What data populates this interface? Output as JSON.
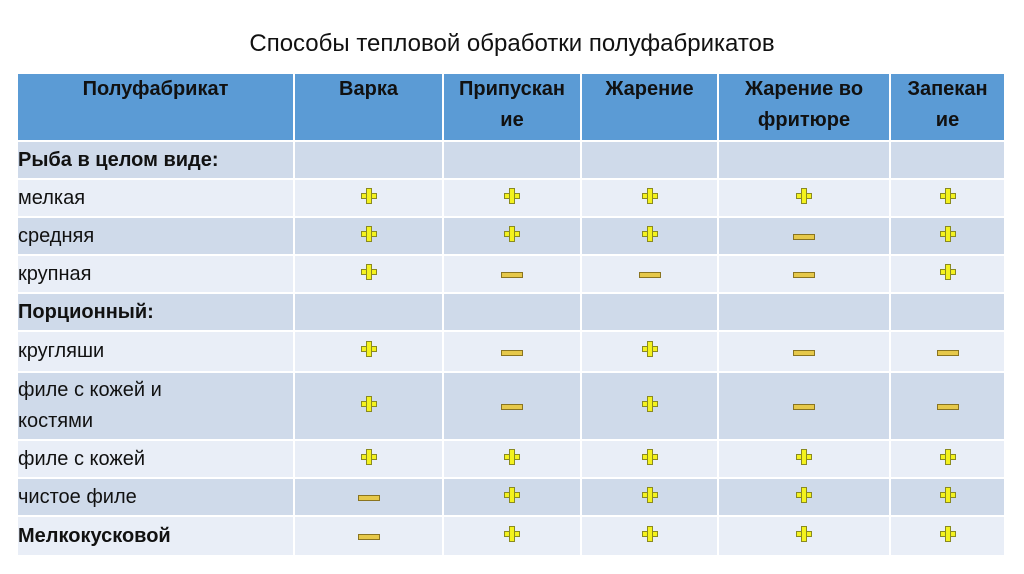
{
  "title": "Способы тепловой обработки полуфабрикатов",
  "table": {
    "headers": [
      "Полуфабрикат",
      "Варка",
      "Припускан ие",
      "Жарение",
      "Жарение во фритюре",
      "Запекан ие"
    ],
    "header_lines": [
      [
        "Полуфабрикат"
      ],
      [
        "Варка"
      ],
      [
        "Припускан",
        "ие"
      ],
      [
        "Жарение"
      ],
      [
        "Жарение во",
        "фритюре"
      ],
      [
        "Запекан",
        "ие"
      ]
    ],
    "rows": [
      {
        "label": "Рыба в целом виде:",
        "label_lines": [
          "Рыба в целом виде:"
        ],
        "bold": true,
        "marks": [
          "",
          "",
          "",
          "",
          ""
        ]
      },
      {
        "label": "мелкая",
        "label_lines": [
          "мелкая"
        ],
        "bold": false,
        "marks": [
          "+",
          "+",
          "+",
          "+",
          "+"
        ]
      },
      {
        "label": "средняя",
        "label_lines": [
          "средняя"
        ],
        "bold": false,
        "marks": [
          "+",
          "+",
          "+",
          "-",
          "+"
        ]
      },
      {
        "label": "крупная",
        "label_lines": [
          "крупная"
        ],
        "bold": false,
        "marks": [
          "+",
          "-",
          "-",
          "-",
          "+"
        ]
      },
      {
        "label": "Порционный:",
        "label_lines": [
          "Порционный:"
        ],
        "bold": true,
        "marks": [
          "",
          "",
          "",
          "",
          ""
        ]
      },
      {
        "label": "кругляши",
        "label_lines": [
          "кругляши"
        ],
        "bold": false,
        "marks": [
          "+",
          "-",
          "+",
          "-",
          "-"
        ]
      },
      {
        "label": "филе с кожей и костями",
        "label_lines": [
          "филе с кожей и",
          "костями"
        ],
        "bold": false,
        "marks": [
          "+",
          "-",
          "+",
          "-",
          "-"
        ]
      },
      {
        "label": "филе с кожей",
        "label_lines": [
          "филе с кожей"
        ],
        "bold": false,
        "marks": [
          "+",
          "+",
          "+",
          "+",
          "+"
        ]
      },
      {
        "label": "чистое филе",
        "label_lines": [
          "чистое филе"
        ],
        "bold": false,
        "marks": [
          "-",
          "+",
          "+",
          "+",
          "+"
        ]
      },
      {
        "label": "Мелкокусковой",
        "label_lines": [
          "Мелкокусковой"
        ],
        "bold": true,
        "marks": [
          "-",
          "+",
          "+",
          "+",
          "+"
        ]
      }
    ]
  },
  "icons": {
    "plus": "plus-icon",
    "minus": "minus-icon"
  },
  "colors": {
    "header": "#5b9bd5",
    "row_dark": "#cfdaea",
    "row_light": "#e9eef7",
    "plus_fill": "#f4f21e",
    "minus_fill": "#e6c84a"
  }
}
